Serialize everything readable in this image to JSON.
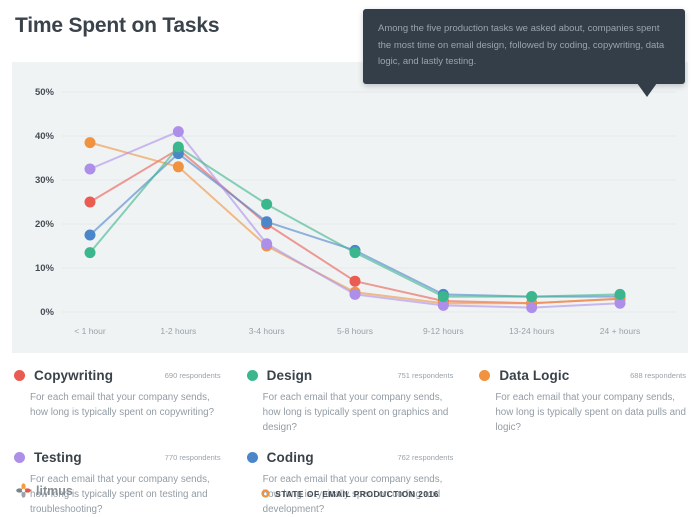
{
  "page": {
    "title": "Time Spent on Tasks"
  },
  "tooltip": {
    "text": "Among the five production tasks we asked about, companies spent the most time on email design, followed by coding, copywriting, data logic, and lastly testing."
  },
  "chart_data": {
    "type": "line",
    "title": "Time Spent on Tasks",
    "categories": [
      "< 1 hour",
      "1-2 hours",
      "3-4 hours",
      "5-8 hours",
      "9-12 hours",
      "13-24 hours",
      "24 + hours"
    ],
    "series": [
      {
        "name": "Copywriting",
        "color": "#ea5b51",
        "values": [
          25,
          37,
          20,
          7,
          2.5,
          2,
          3
        ]
      },
      {
        "name": "Coding",
        "color": "#4a86c8",
        "values": [
          17.5,
          36,
          20.5,
          14,
          4,
          3.5,
          3.5
        ]
      },
      {
        "name": "Data Logic",
        "color": "#f0923f",
        "values": [
          38.5,
          33,
          15,
          4.5,
          2,
          2,
          3
        ]
      },
      {
        "name": "Testing",
        "color": "#ad8fe9",
        "values": [
          32.5,
          41,
          15.5,
          4,
          1.5,
          1,
          2
        ]
      },
      {
        "name": "Design",
        "color": "#3cb68c",
        "values": [
          13.5,
          37.5,
          24.5,
          13.5,
          3.5,
          3.5,
          4
        ]
      }
    ],
    "xlabel": "",
    "ylabel": "",
    "ylim": [
      0,
      50
    ],
    "yticks": [
      "0%",
      "10%",
      "20%",
      "30%",
      "40%",
      "50%"
    ],
    "grid": true,
    "legend_position": "bottom",
    "panel_bg": "#f0f3f4",
    "grid_color": "#e3e8ea",
    "ytick_color": "#454d54",
    "xtick_color": "#98a1a8"
  },
  "legend": {
    "items": [
      {
        "name": "Copywriting",
        "color": "#ea5b51",
        "respondents": "690 respondents",
        "description": "For each email that your company sends, how long is typically spent on copywriting?"
      },
      {
        "name": "Design",
        "color": "#3cb68c",
        "respondents": "751 respondents",
        "description": "For each email that your company sends, how long is typically spent on graphics and design?"
      },
      {
        "name": "Data Logic",
        "color": "#f0923f",
        "respondents": "688 respondents",
        "description": "For each email that your company sends, how long is typically spent on data pulls and logic?"
      },
      {
        "name": "Testing",
        "color": "#ad8fe9",
        "respondents": "770 respondents",
        "description": "For each email that your company sends, how long is typically spent on testing and troubleshooting?"
      },
      {
        "name": "Coding",
        "color": "#4a86c8",
        "respondents": "762 respondents",
        "description": "For each email that your company sends, how long is typically spent on coding and development?"
      }
    ]
  },
  "footer": {
    "brand": "litmus",
    "label": "STATE OF EMAIL PRODUCTION 2016"
  }
}
